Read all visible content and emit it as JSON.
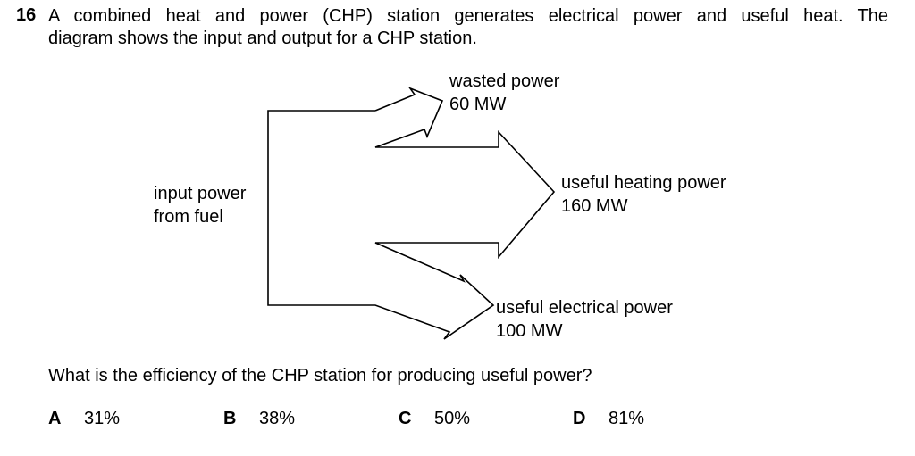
{
  "question": {
    "number": "16",
    "intro_line1": "A combined heat and power (CHP) station generates electrical power and useful heat. The",
    "intro_line2": "diagram shows the input and output for a CHP station.",
    "prompt": "What is the efficiency of the CHP station for producing useful power?"
  },
  "diagram": {
    "input": {
      "line1": "input power",
      "line2": "from fuel"
    },
    "outputs": [
      {
        "line1": "wasted power",
        "line2": "60 MW",
        "value_mw": 60
      },
      {
        "line1": "useful heating power",
        "line2": "160 MW",
        "value_mw": 160
      },
      {
        "line1": "useful electrical power",
        "line2": "100 MW",
        "value_mw": 100
      }
    ]
  },
  "options": [
    {
      "letter": "A",
      "text": "31%"
    },
    {
      "letter": "B",
      "text": "38%"
    },
    {
      "letter": "C",
      "text": "50%"
    },
    {
      "letter": "D",
      "text": "81%"
    }
  ]
}
